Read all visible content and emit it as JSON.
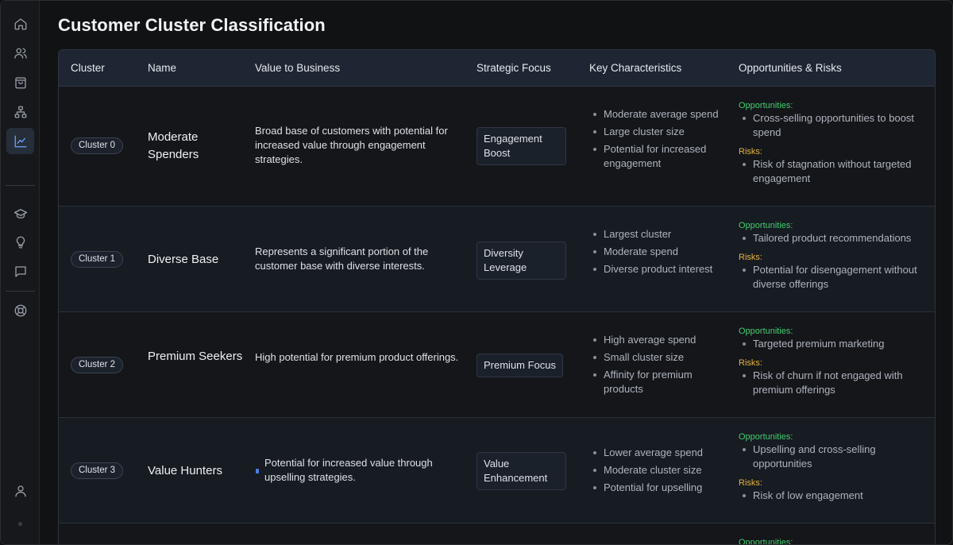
{
  "page": {
    "title": "Customer Cluster Classification"
  },
  "sidebar": {
    "items": [
      {
        "icon": "home-icon",
        "active": false
      },
      {
        "icon": "users-icon",
        "active": false
      },
      {
        "icon": "shopping-bag-icon",
        "active": false
      },
      {
        "icon": "hierarchy-icon",
        "active": false
      },
      {
        "icon": "line-chart-icon",
        "active": true
      },
      {
        "icon": "graduation-cap-icon",
        "active": false
      },
      {
        "icon": "lightbulb-icon",
        "active": false
      },
      {
        "icon": "chat-icon",
        "active": false
      },
      {
        "icon": "lifebuoy-icon",
        "active": false
      },
      {
        "icon": "user-icon",
        "active": false
      }
    ]
  },
  "table": {
    "headers": {
      "cluster": "Cluster",
      "name": "Name",
      "value": "Value to Business",
      "focus": "Strategic Focus",
      "characteristics": "Key Characteristics",
      "opps_risks": "Opportunities & Risks"
    },
    "opp_label": "Opportunities:",
    "risk_label": "Risks:",
    "rows": [
      {
        "cluster": "Cluster 0",
        "name": "Moderate Spenders",
        "value": "Broad base of customers with potential for increased value through engagement strategies.",
        "focus": "Engagement Boost",
        "characteristics": [
          "Moderate average spend",
          "Large cluster size",
          "Potential for increased engagement"
        ],
        "opportunities": [
          "Cross-selling opportunities to boost spend"
        ],
        "risks": [
          "Risk of stagnation without targeted engagement"
        ]
      },
      {
        "cluster": "Cluster 1",
        "name": "Diverse Base",
        "value": "Represents a significant portion of the customer base with diverse interests.",
        "focus": "Diversity Leverage",
        "characteristics": [
          "Largest cluster",
          "Moderate spend",
          "Diverse product interest"
        ],
        "opportunities": [
          "Tailored product recommendations"
        ],
        "risks": [
          "Potential for disengagement without diverse offerings"
        ]
      },
      {
        "cluster": "Cluster 2",
        "name": "Premium Seekers",
        "value": "High potential for premium product offerings.",
        "focus": "Premium Focus",
        "characteristics": [
          "High average spend",
          "Small cluster size",
          "Affinity for premium products"
        ],
        "opportunities": [
          "Targeted premium marketing"
        ],
        "risks": [
          "Risk of churn if not engaged with premium offerings"
        ]
      },
      {
        "cluster": "Cluster 3",
        "name": "Value Hunters",
        "value": "Potential for increased value through upselling strategies.",
        "focus": "Value Enhancement",
        "characteristics": [
          "Lower average spend",
          "Moderate cluster size",
          "Potential for upselling"
        ],
        "opportunities": [
          "Upselling and cross-selling opportunities"
        ],
        "risks": [
          "Risk of low engagement"
        ]
      }
    ]
  }
}
